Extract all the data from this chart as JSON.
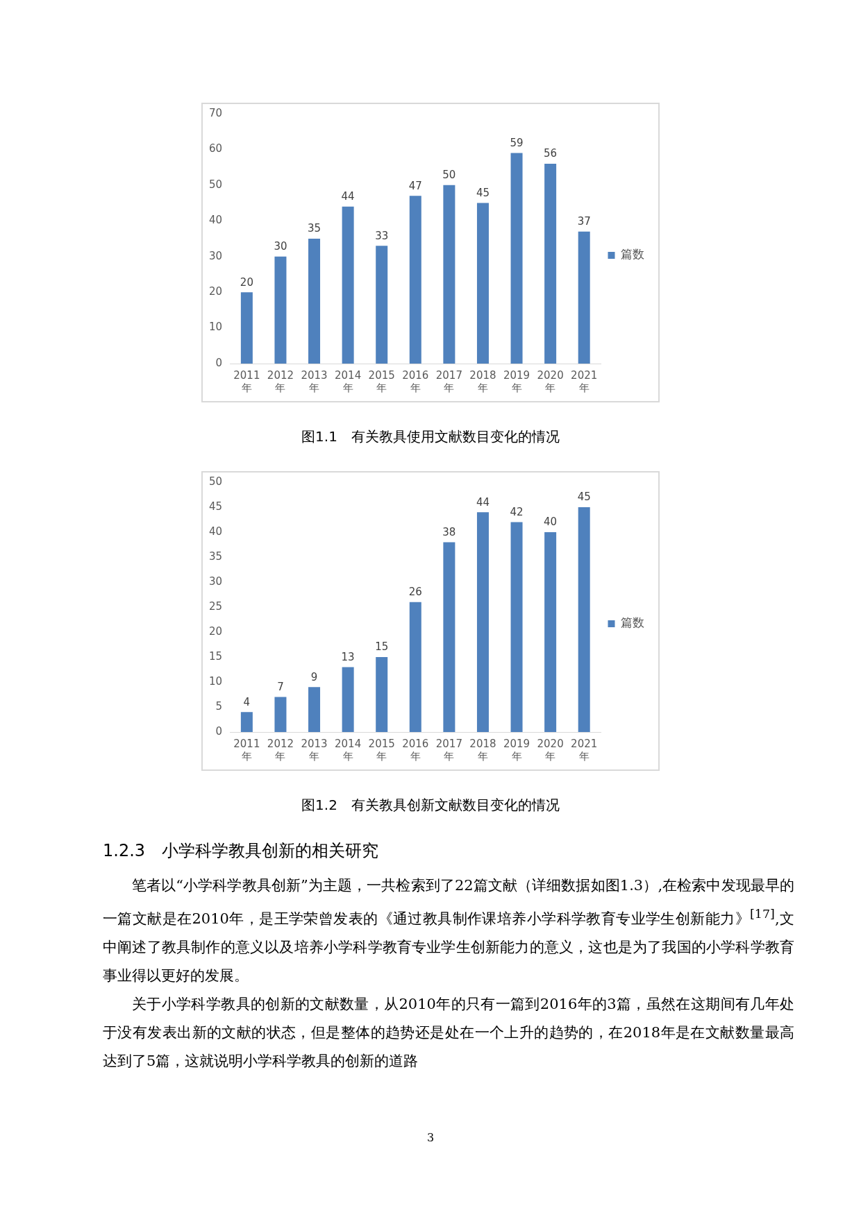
{
  "chart_data": [
    {
      "type": "bar",
      "title": "图1.1　有关教具使用文献数目变化的情况",
      "categories": [
        "2011年",
        "2012年",
        "2013年",
        "2014年",
        "2015年",
        "2016年",
        "2017年",
        "2018年",
        "2019年",
        "2020年",
        "2021年"
      ],
      "series": [
        {
          "name": "篇数",
          "color": "#4f81bd",
          "values": [
            20,
            30,
            35,
            44,
            33,
            47,
            50,
            45,
            59,
            56,
            37
          ]
        }
      ],
      "ylim": [
        0,
        70
      ],
      "yticks": [
        0,
        10,
        20,
        30,
        40,
        50,
        60,
        70
      ],
      "grid": false,
      "legend": "right",
      "data_labels": true
    },
    {
      "type": "bar",
      "title": "图1.2　有关教具创新文献数目变化的情况",
      "categories": [
        "2011年",
        "2012年",
        "2013年",
        "2014年",
        "2015年",
        "2016年",
        "2017年",
        "2018年",
        "2019年",
        "2020年",
        "2021年"
      ],
      "series": [
        {
          "name": "篇数",
          "color": "#4f81bd",
          "values": [
            4,
            7,
            9,
            13,
            15,
            26,
            38,
            44,
            42,
            40,
            45
          ]
        }
      ],
      "ylim": [
        0,
        50
      ],
      "yticks": [
        0,
        5,
        10,
        15,
        20,
        25,
        30,
        35,
        40,
        45,
        50
      ],
      "grid": false,
      "legend": "right",
      "data_labels": true,
      "annotations": [
        "1.2.3　小学科学教具创新的相关研究",
        "笔者以“小学科学教具创新”为主题，一共检索到了22篇文献（详细数据如图1.3）,在检索中发现最早的一篇文献是在2010年，是王学荣曾发表的《通过教具制作课培养小学科学教育专业学生创新能力》$^{[17]}$,文中阐述了教具制作的意义以及培养小学科学教育专业学生创新能力的意义，这也是为了我国的小学科学教育事业得以更好的发展。",
        "关于小学科学教具的创新的文献数量，从2010年的只有一篇到2016年的3篇，虽然在这期间有几年处于没有发表出新的文献的状态，但是整体的趋势还是处在一个上升的趋势的，在2018年是在文献数量最高达到了5篇，这就说明小学科学教具的创新的道路",
        "3"
      ]
    }
  ]
}
